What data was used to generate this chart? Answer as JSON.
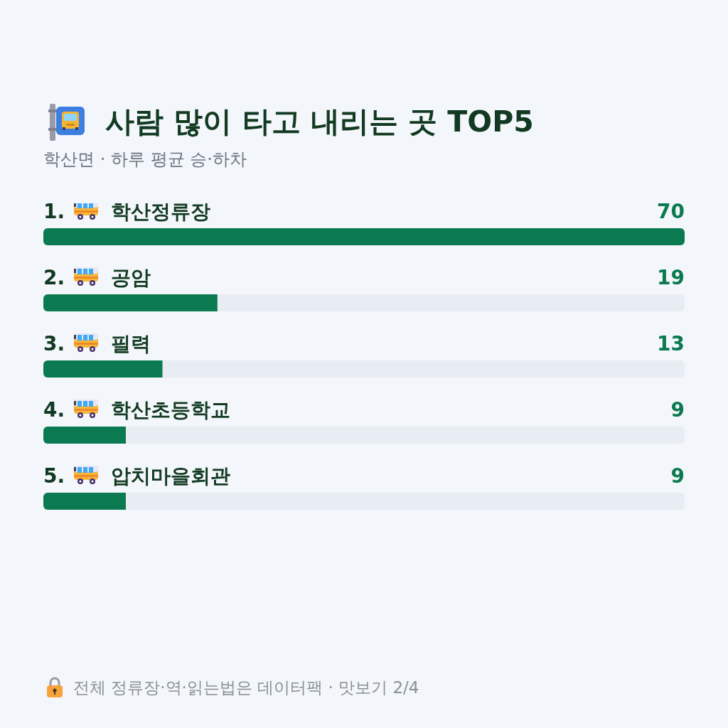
{
  "chart_data": {
    "type": "bar",
    "orientation": "horizontal",
    "title": "사람 많이 타고 내리는 곳 TOP5",
    "subtitle": "학산면 · 하루 평균 승·하차",
    "categories": [
      "1. 학산정류장",
      "2. 공암",
      "3. 필력",
      "4. 학산초등학교",
      "5. 압치마을회관"
    ],
    "values": [
      70,
      19,
      13,
      9,
      9
    ],
    "color": "#0b7a50",
    "xlim": [
      0,
      70
    ],
    "tick_labels": false,
    "data_labels": true,
    "annotations": [
      "전체 정류장·역·읽는법은 데이터팩 · 맛보기 2/4"
    ]
  }
}
